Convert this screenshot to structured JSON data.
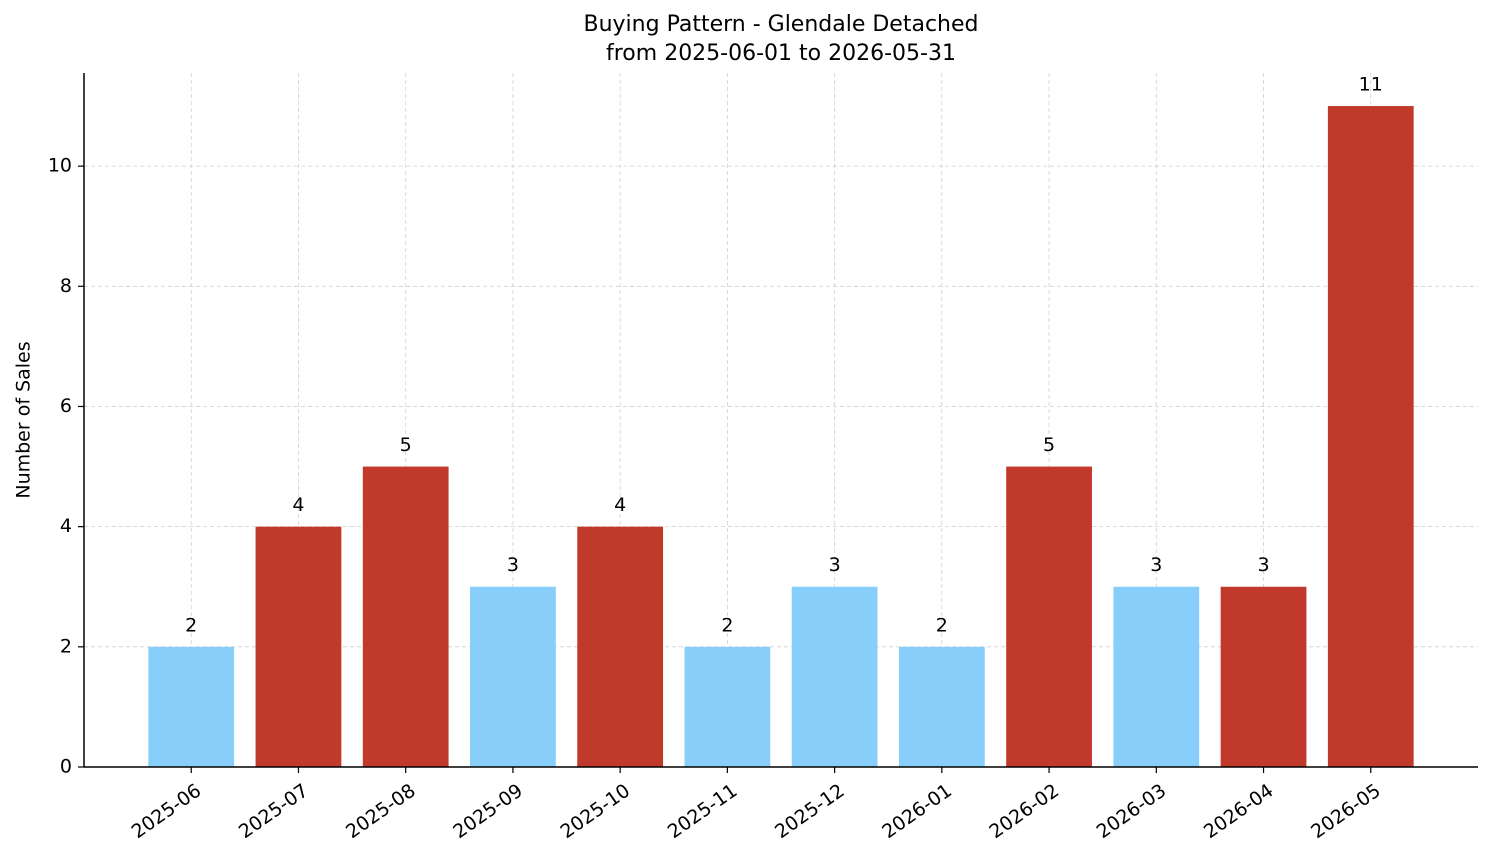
{
  "chart_data": {
    "type": "bar",
    "title": "Buying Pattern - Glendale Detached",
    "subtitle": "from 2025-06-01 to 2026-05-31",
    "y_label": "Number of Sales",
    "categories": [
      "2025-06",
      "2025-07",
      "2025-08",
      "2025-09",
      "2025-10",
      "2025-11",
      "2025-12",
      "2026-01",
      "2026-02",
      "2026-03",
      "2026-04",
      "2026-05"
    ],
    "values": [
      2,
      4,
      5,
      3,
      4,
      2,
      3,
      2,
      5,
      3,
      3,
      11
    ],
    "colors": [
      "#87cefa",
      "#c0392b",
      "#c0392b",
      "#87cefa",
      "#c0392b",
      "#87cefa",
      "#87cefa",
      "#87cefa",
      "#c0392b",
      "#87cefa",
      "#c0392b",
      "#c0392b"
    ],
    "ylim": [
      0,
      11.55
    ],
    "yticks": [
      0,
      2,
      4,
      6,
      8,
      10
    ],
    "grid": true
  }
}
